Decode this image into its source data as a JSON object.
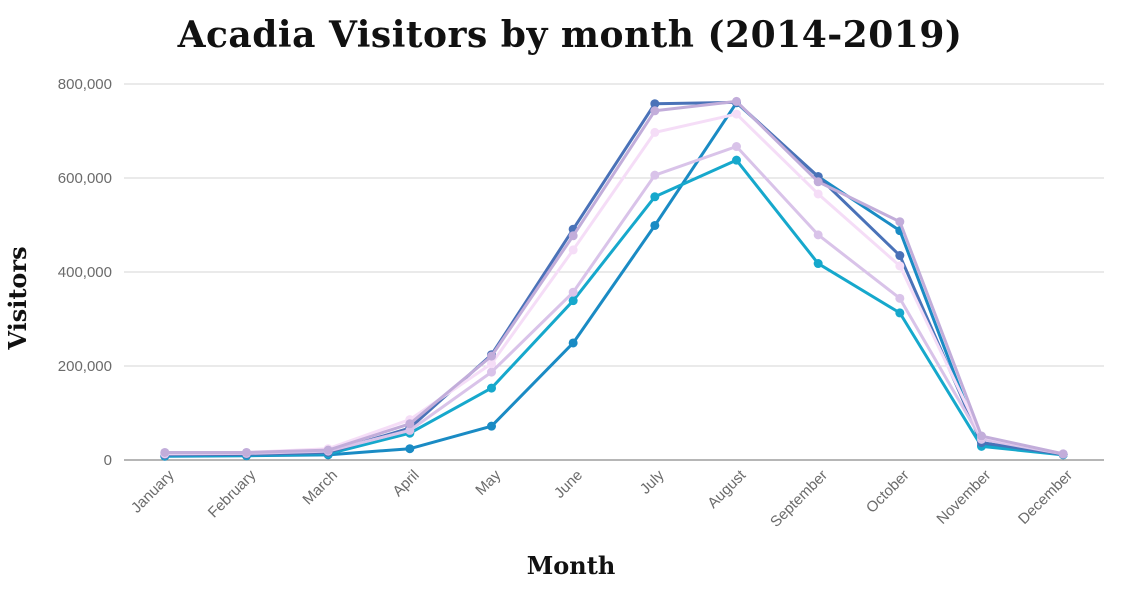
{
  "chart_data": {
    "type": "line",
    "title": "Acadia Visitors by month (2014-2019)",
    "xlabel": "Month",
    "ylabel": "Visitors",
    "categories": [
      "January",
      "February",
      "March",
      "April",
      "May",
      "June",
      "July",
      "August",
      "September",
      "October",
      "November",
      "December"
    ],
    "ylim": [
      0,
      800000
    ],
    "yticks": [
      0,
      200000,
      400000,
      600000,
      800000
    ],
    "ytick_labels": [
      "0",
      "200,000",
      "400,000",
      "600,000",
      "800,000"
    ],
    "grid": "horizontal",
    "legend": "none",
    "series": [
      {
        "color": "#1A8BC4",
        "values": [
          8000,
          9000,
          11000,
          24000,
          72000,
          249000,
          499000,
          760000,
          603000,
          488000,
          31000,
          12000
        ]
      },
      {
        "color": "#16A8CC",
        "values": [
          9000,
          10000,
          13000,
          57000,
          153000,
          339000,
          560000,
          638000,
          418000,
          313000,
          29000,
          11000
        ]
      },
      {
        "color": "#4A72B8",
        "values": [
          11000,
          12000,
          16000,
          68000,
          224000,
          491000,
          758000,
          761000,
          603000,
          435000,
          37000,
          12000
        ]
      },
      {
        "color": "#D9C3E9",
        "values": [
          13000,
          14000,
          19000,
          63000,
          187000,
          357000,
          606000,
          667000,
          479000,
          344000,
          44000,
          13000
        ]
      },
      {
        "color": "#F5DDF7",
        "values": [
          15000,
          16000,
          24000,
          86000,
          205000,
          447000,
          697000,
          736000,
          566000,
          413000,
          50000,
          13000
        ]
      },
      {
        "color": "#C2ADDA",
        "values": [
          16000,
          16000,
          21000,
          77000,
          221000,
          477000,
          743000,
          763000,
          592000,
          507000,
          51000,
          13000
        ]
      }
    ]
  }
}
